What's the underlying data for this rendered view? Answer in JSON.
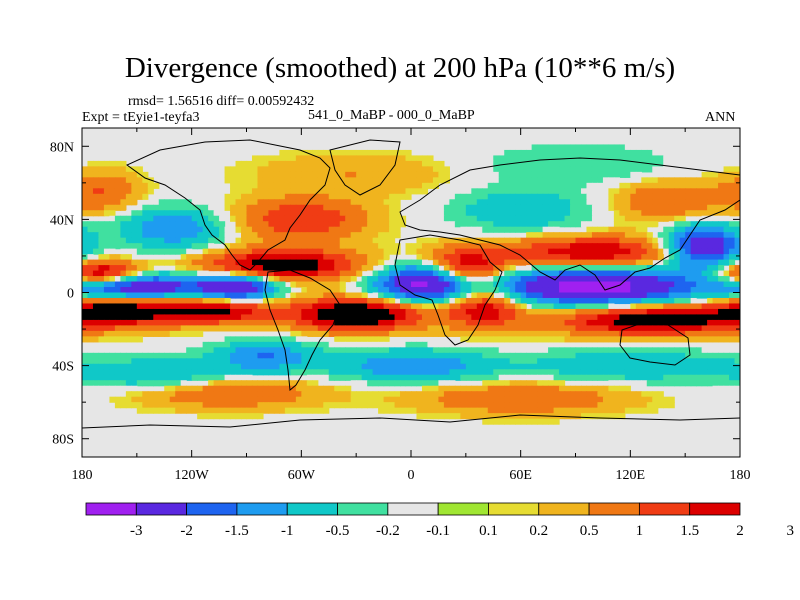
{
  "title": "Divergence (smoothed) at 200 hPa (10**6 m/s)",
  "stats": "rmsd= 1.56516 diff= 0.00592432",
  "experiment": "Expt = tEyie1-teyfa3",
  "period_label": "541_0_MaBP - 000_0_MaBP",
  "season": "ANN",
  "colors": {
    "background": "#e6e6e6",
    "palette": [
      "#a020f0",
      "#5a28e0",
      "#1e64f0",
      "#1e9cf0",
      "#10c8c8",
      "#40e0a0",
      "#e6e6e6",
      "#a0e632",
      "#e6dc32",
      "#f0b41e",
      "#f07814",
      "#f03c14",
      "#dc0000"
    ]
  },
  "chart_data": {
    "type": "map_contour",
    "variable": "200 hPa smoothed divergence difference",
    "units": "10**6 m/s",
    "x_ticks": [
      "180",
      "120W",
      "60W",
      "0",
      "60E",
      "120E",
      "180"
    ],
    "x_tick_values": [
      -180,
      -120,
      -60,
      0,
      60,
      120,
      180
    ],
    "y_ticks": [
      "80N",
      "40N",
      "0",
      "40S",
      "80S"
    ],
    "y_tick_values": [
      80,
      40,
      0,
      -40,
      -80
    ],
    "xlim": [
      -180,
      180
    ],
    "ylim": [
      -90,
      90
    ],
    "colorbar_labels": [
      "-3",
      "-2",
      "-1.5",
      "-1",
      "-0.5",
      "-0.2",
      "-0.1",
      "0.1",
      "0.2",
      "0.5",
      "1",
      "1.5",
      "2",
      "3"
    ],
    "features": [
      {
        "lon": -150,
        "lat": 3,
        "value": -3.0,
        "sx": 25,
        "sy": 5
      },
      {
        "lon": -95,
        "lat": 3,
        "value": -3.0,
        "sx": 15,
        "sy": 5
      },
      {
        "lon": 10,
        "lat": 5,
        "value": -3.5,
        "sx": 20,
        "sy": 7
      },
      {
        "lon": 100,
        "lat": 3,
        "value": -3.5,
        "sx": 40,
        "sy": 7
      },
      {
        "lon": 160,
        "lat": 25,
        "value": -3.0,
        "sx": 15,
        "sy": 8
      },
      {
        "lon": -160,
        "lat": -10,
        "value": 2.5,
        "sx": 25,
        "sy": 6
      },
      {
        "lon": -170,
        "lat": 10,
        "value": 2.5,
        "sx": 15,
        "sy": 5
      },
      {
        "lon": -70,
        "lat": 15,
        "value": 2.5,
        "sx": 30,
        "sy": 6
      },
      {
        "lon": -30,
        "lat": -12,
        "value": 3.0,
        "sx": 25,
        "sy": 6
      },
      {
        "lon": -105,
        "lat": -10,
        "value": 2.0,
        "sx": 20,
        "sy": 5
      },
      {
        "lon": 30,
        "lat": 12,
        "value": 2.5,
        "sx": 15,
        "sy": 8
      },
      {
        "lon": 40,
        "lat": -8,
        "value": 2.0,
        "sx": 15,
        "sy": 8
      },
      {
        "lon": 130,
        "lat": -15,
        "value": 2.5,
        "sx": 35,
        "sy": 6
      },
      {
        "lon": 100,
        "lat": 22,
        "value": 2.0,
        "sx": 35,
        "sy": 6
      },
      {
        "lon": -130,
        "lat": 35,
        "value": -1.5,
        "sx": 20,
        "sy": 8
      },
      {
        "lon": -60,
        "lat": 40,
        "value": 1.5,
        "sx": 25,
        "sy": 8
      },
      {
        "lon": 60,
        "lat": 45,
        "value": -1.0,
        "sx": 25,
        "sy": 8
      },
      {
        "lon": 140,
        "lat": 50,
        "value": 1.0,
        "sx": 20,
        "sy": 8
      },
      {
        "lon": -170,
        "lat": 55,
        "value": 1.0,
        "sx": 15,
        "sy": 8
      },
      {
        "lon": -80,
        "lat": -35,
        "value": -1.5,
        "sx": 20,
        "sy": 6
      },
      {
        "lon": 0,
        "lat": -40,
        "value": -1.5,
        "sx": 30,
        "sy": 6
      },
      {
        "lon": 120,
        "lat": -40,
        "value": -1.0,
        "sx": 40,
        "sy": 6
      },
      {
        "lon": -140,
        "lat": -45,
        "value": -1.0,
        "sx": 30,
        "sy": 6
      },
      {
        "lon": -100,
        "lat": -55,
        "value": 1.0,
        "sx": 35,
        "sy": 6
      },
      {
        "lon": 60,
        "lat": -58,
        "value": 1.0,
        "sx": 40,
        "sy": 6
      },
      {
        "lon": -30,
        "lat": 65,
        "value": 0.5,
        "sx": 40,
        "sy": 8
      },
      {
        "lon": 90,
        "lat": 70,
        "value": -0.5,
        "sx": 40,
        "sy": 8
      }
    ]
  }
}
